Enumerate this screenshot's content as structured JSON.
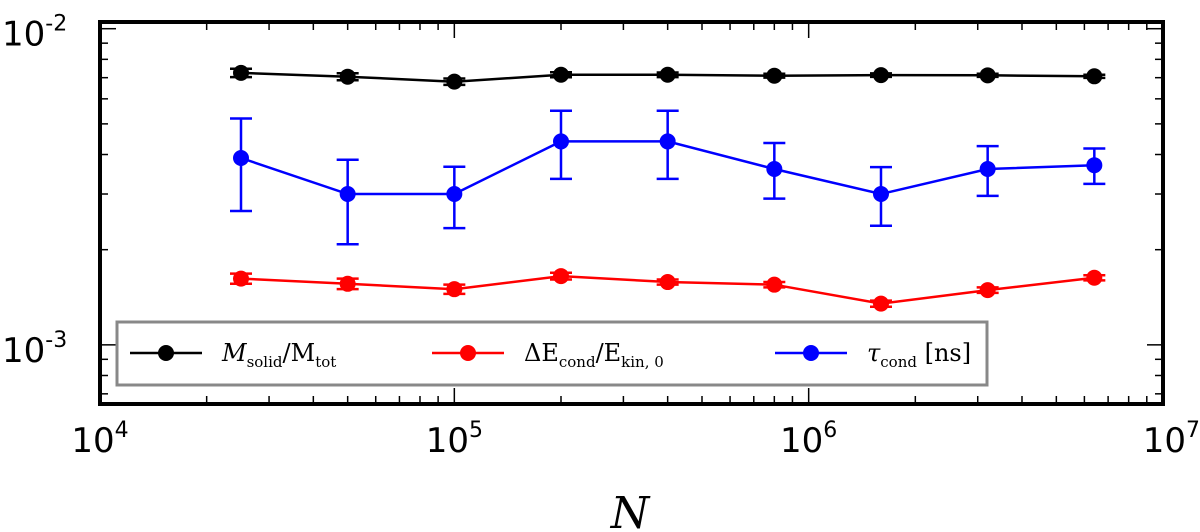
{
  "chart_data": {
    "type": "line",
    "title": "",
    "xlabel": "N",
    "ylabel": "",
    "xscale": "log",
    "yscale": "log",
    "xlim": [
      10000,
      10000000
    ],
    "ylim": [
      0.00065,
      0.0105
    ],
    "grid": false,
    "legend_placement": "lower-left",
    "x_ticks": [
      {
        "base": "10",
        "exp": "4",
        "value": 10000
      },
      {
        "base": "10",
        "exp": "5",
        "value": 100000
      },
      {
        "base": "10",
        "exp": "6",
        "value": 1000000
      },
      {
        "base": "10",
        "exp": "7",
        "value": 10000000
      }
    ],
    "y_ticks": [
      {
        "base": "10",
        "exp": "-3",
        "value": 0.001
      },
      {
        "base": "10",
        "exp": "-2",
        "value": 0.01
      }
    ],
    "x": [
      25000,
      50000,
      100000,
      200000,
      400000,
      800000,
      1600000,
      3200000,
      6400000
    ],
    "series": [
      {
        "name": "M_solid/M_tot",
        "label_main1": "M",
        "label_sub1": "solid",
        "label_main2": "/M",
        "label_sub2": "tot",
        "color": "#000000",
        "values": [
          0.00725,
          0.00705,
          0.0068,
          0.00715,
          0.00715,
          0.0071,
          0.00713,
          0.00712,
          0.00707
        ],
        "errors": [
          0.00022,
          0.00018,
          0.00016,
          0.00013,
          0.00012,
          0.0001,
          9e-05,
          8e-05,
          8e-05
        ]
      },
      {
        "name": "ΔE_cond/E_kin,0",
        "label_main1": "ΔE",
        "label_sub1": "cond",
        "label_main2": "/E",
        "label_sub2": "kin, 0",
        "color": "#ff0000",
        "values": [
          0.00162,
          0.00156,
          0.0015,
          0.00165,
          0.00158,
          0.00155,
          0.00135,
          0.00149,
          0.00163
        ],
        "errors": [
          6e-05,
          6e-05,
          5e-05,
          4e-05,
          3e-05,
          3e-05,
          3e-05,
          3e-05,
          3e-05
        ]
      },
      {
        "name": "τ_cond [ns]",
        "label_main1": "τ",
        "label_sub1": "cond",
        "label_main2": " [ns]",
        "label_sub2": "",
        "color": "#0000ff",
        "values": [
          0.0039,
          0.003,
          0.003,
          0.0044,
          0.0044,
          0.0036,
          0.003,
          0.0036,
          0.0037
        ],
        "err_low": [
          0.00125,
          0.00092,
          0.00066,
          0.00105,
          0.00105,
          0.0007,
          0.00062,
          0.00064,
          0.00047
        ],
        "err_high": [
          0.0013,
          0.00085,
          0.00066,
          0.0011,
          0.0011,
          0.00075,
          0.00065,
          0.00065,
          0.00048
        ]
      }
    ]
  }
}
